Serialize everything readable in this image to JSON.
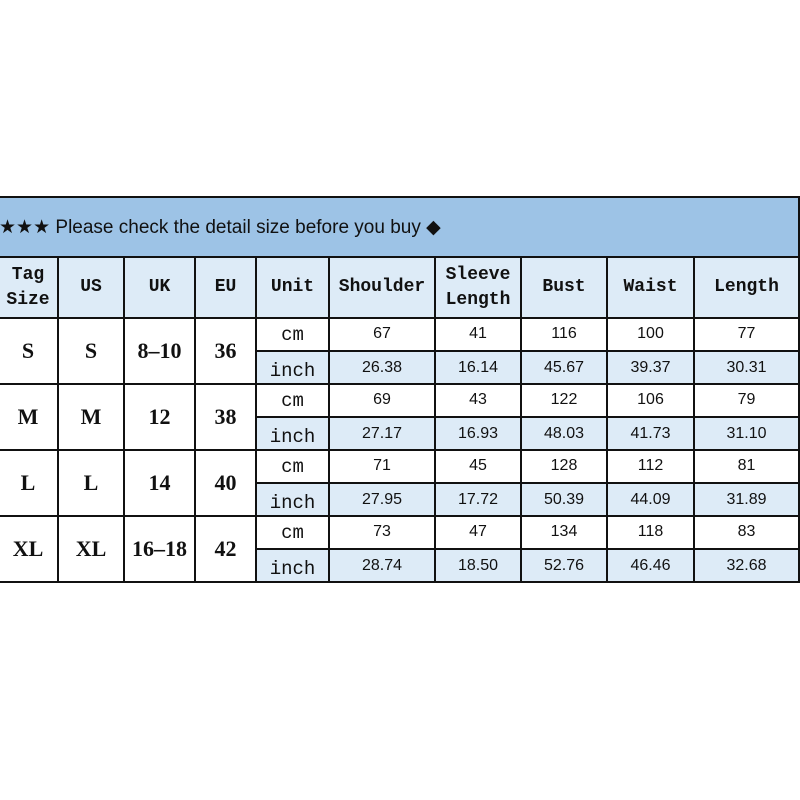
{
  "banner": {
    "stars": "★★★",
    "text": "Please check the detail size before you buy",
    "diamond": "◆"
  },
  "colors": {
    "banner": "#9dc3e6",
    "header": "#ddebf7",
    "inch_row": "#ddebf7",
    "border": "#111111"
  },
  "headers": [
    "Tag Size",
    "US",
    "UK",
    "EU",
    "Unit",
    "Shoulder",
    "Sleeve Length",
    "Bust",
    "Waist",
    "Length"
  ],
  "rows": [
    {
      "tag": "S",
      "us": "S",
      "uk": "8-10",
      "eu": "36",
      "cm": {
        "unit": "cm",
        "values": [
          "67",
          "41",
          "116",
          "100",
          "77"
        ]
      },
      "inch": {
        "unit": "inch",
        "values": [
          "26.38",
          "16.14",
          "45.67",
          "39.37",
          "30.31"
        ]
      }
    },
    {
      "tag": "M",
      "us": "M",
      "uk": "12",
      "eu": "38",
      "cm": {
        "unit": "cm",
        "values": [
          "69",
          "43",
          "122",
          "106",
          "79"
        ]
      },
      "inch": {
        "unit": "inch",
        "values": [
          "27.17",
          "16.93",
          "48.03",
          "41.73",
          "31.10"
        ]
      }
    },
    {
      "tag": "L",
      "us": "L",
      "uk": "14",
      "eu": "40",
      "cm": {
        "unit": "cm",
        "values": [
          "71",
          "45",
          "128",
          "112",
          "81"
        ]
      },
      "inch": {
        "unit": "inch",
        "values": [
          "27.95",
          "17.72",
          "50.39",
          "44.09",
          "31.89"
        ]
      }
    },
    {
      "tag": "XL",
      "us": "XL",
      "uk": "16-18",
      "eu": "42",
      "cm": {
        "unit": "cm",
        "values": [
          "73",
          "47",
          "134",
          "118",
          "83"
        ]
      },
      "inch": {
        "unit": "inch",
        "values": [
          "28.74",
          "18.50",
          "52.76",
          "46.46",
          "32.68"
        ]
      }
    }
  ]
}
